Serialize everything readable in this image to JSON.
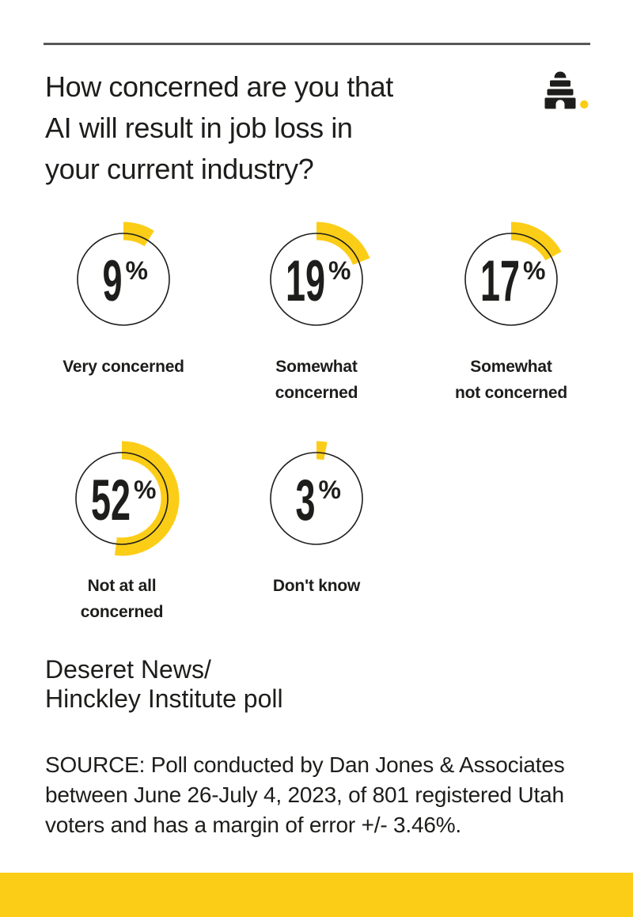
{
  "colors": {
    "accent_yellow": "#FCCD17",
    "ink": "#1D1D1B",
    "rule_gray": "#58585A",
    "background": "#FFFFFF"
  },
  "header": {
    "title_lines": [
      "How concerned are you that",
      "AI will result in job loss in",
      "your current industry?"
    ],
    "logo_name": "deseret-news-beehive"
  },
  "chart_data": {
    "type": "gauge",
    "title": "How concerned are you that AI will result in job loss in your current industry?",
    "unit": "%",
    "categories": [
      "Very concerned",
      "Somewhat concerned",
      "Somewhat not concerned",
      "Not at all concerned",
      "Don't know"
    ],
    "values": [
      9,
      19,
      17,
      52,
      3
    ],
    "series": [
      {
        "label": "Very concerned",
        "label_lines": [
          "Very concerned"
        ],
        "value": 9
      },
      {
        "label": "Somewhat concerned",
        "label_lines": [
          "Somewhat",
          "concerned"
        ],
        "value": 19
      },
      {
        "label": "Somewhat not concerned",
        "label_lines": [
          "Somewhat",
          "not concerned"
        ],
        "value": 17
      },
      {
        "label": "Not at all concerned",
        "label_lines": [
          "Not at all",
          "concerned"
        ],
        "value": 52
      },
      {
        "label": "Don't know",
        "label_lines": [
          "Don't know"
        ],
        "value": 3
      }
    ],
    "arc_color": "#FCCD17",
    "ring_color": "#1D1D1B",
    "start_angle_deg": -90,
    "direction": "clockwise",
    "legend": "off",
    "layout": "two rows: 3 gauges top, 2 gauges bottom"
  },
  "footer": {
    "credit_lines": [
      "Deseret News/",
      "Hinckley Institute poll"
    ],
    "source_lines": [
      "SOURCE: Poll conducted by Dan Jones & Associates",
      "between June 26-July 4, 2023, of 801 registered Utah",
      "voters and has a margin of error +/- 3.46%."
    ]
  }
}
